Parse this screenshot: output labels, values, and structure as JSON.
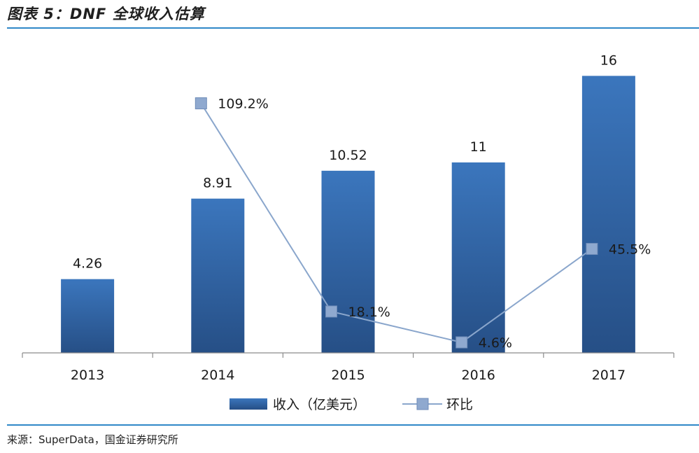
{
  "figure": {
    "title": "图表 5：DNF 全球收入估算",
    "source": "来源：SuperData，国金证券研究所"
  },
  "colors": {
    "rule": "#2f88c8",
    "bar_top": "#3b76bd",
    "bar_bottom": "#264f86",
    "line": "#8aa6cc",
    "marker": "#8fa9cf"
  },
  "chart_data": {
    "type": "bar",
    "categories": [
      "2013",
      "2014",
      "2015",
      "2016",
      "2017"
    ],
    "series": [
      {
        "name": "收入（亿美元）",
        "type": "bar",
        "values": [
          4.26,
          8.91,
          10.52,
          11,
          16
        ],
        "labels": [
          "4.26",
          "8.91",
          "10.52",
          "11",
          "16"
        ]
      },
      {
        "name": "环比",
        "type": "line",
        "values": [
          null,
          109.2,
          18.1,
          4.6,
          45.5
        ],
        "labels": [
          "",
          "109.2%",
          "18.1%",
          "4.6%",
          "45.5%"
        ]
      }
    ],
    "ylim": [
      0,
      16.5
    ],
    "y2lim": [
      0,
      125
    ],
    "grid": false,
    "legend": "bottom"
  }
}
